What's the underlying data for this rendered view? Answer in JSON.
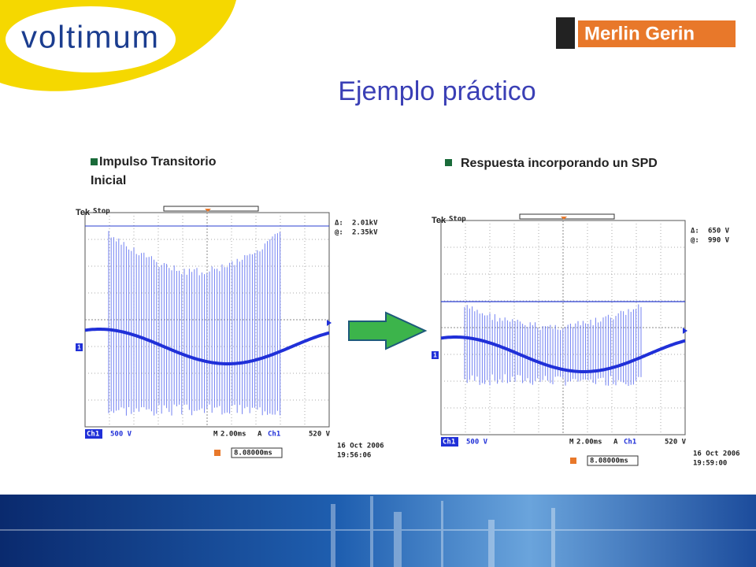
{
  "header": {
    "logo": "voltimum",
    "brand": "Merlin Gerin",
    "title": "Ejemplo práctico"
  },
  "bullets": [
    "Impulso Transitorio Inicial",
    "Respuesta incorporando un SPD"
  ],
  "scopes": [
    {
      "brand": "Tek",
      "status": "Stop",
      "channel_marker": "1",
      "readouts": [
        {
          "symbol": "Δ:",
          "value": "2.01kV"
        },
        {
          "symbol": "@:",
          "value": "2.35kV"
        }
      ],
      "channel": "Ch1",
      "scale": "500 V",
      "timebase_prefix": "M",
      "timebase": "2.00ms",
      "trigger_mode": "A",
      "trigger_channel": "Ch1",
      "trigger_level": "520 V",
      "trigger_position": "8.08000ms",
      "date": "16 Oct  2006",
      "time": "19:56:06"
    },
    {
      "brand": "Tek",
      "status": "Stop",
      "channel_marker": "1",
      "readouts": [
        {
          "symbol": "Δ:",
          "value": "650 V"
        },
        {
          "symbol": "@:",
          "value": "990 V"
        }
      ],
      "channel": "Ch1",
      "scale": "500 V",
      "timebase_prefix": "M",
      "timebase": "2.00ms",
      "trigger_mode": "A",
      "trigger_channel": "Ch1",
      "trigger_level": "520 V",
      "trigger_position": "8.08000ms",
      "date": "16 Oct  2006",
      "time": "19:59:00"
    }
  ]
}
